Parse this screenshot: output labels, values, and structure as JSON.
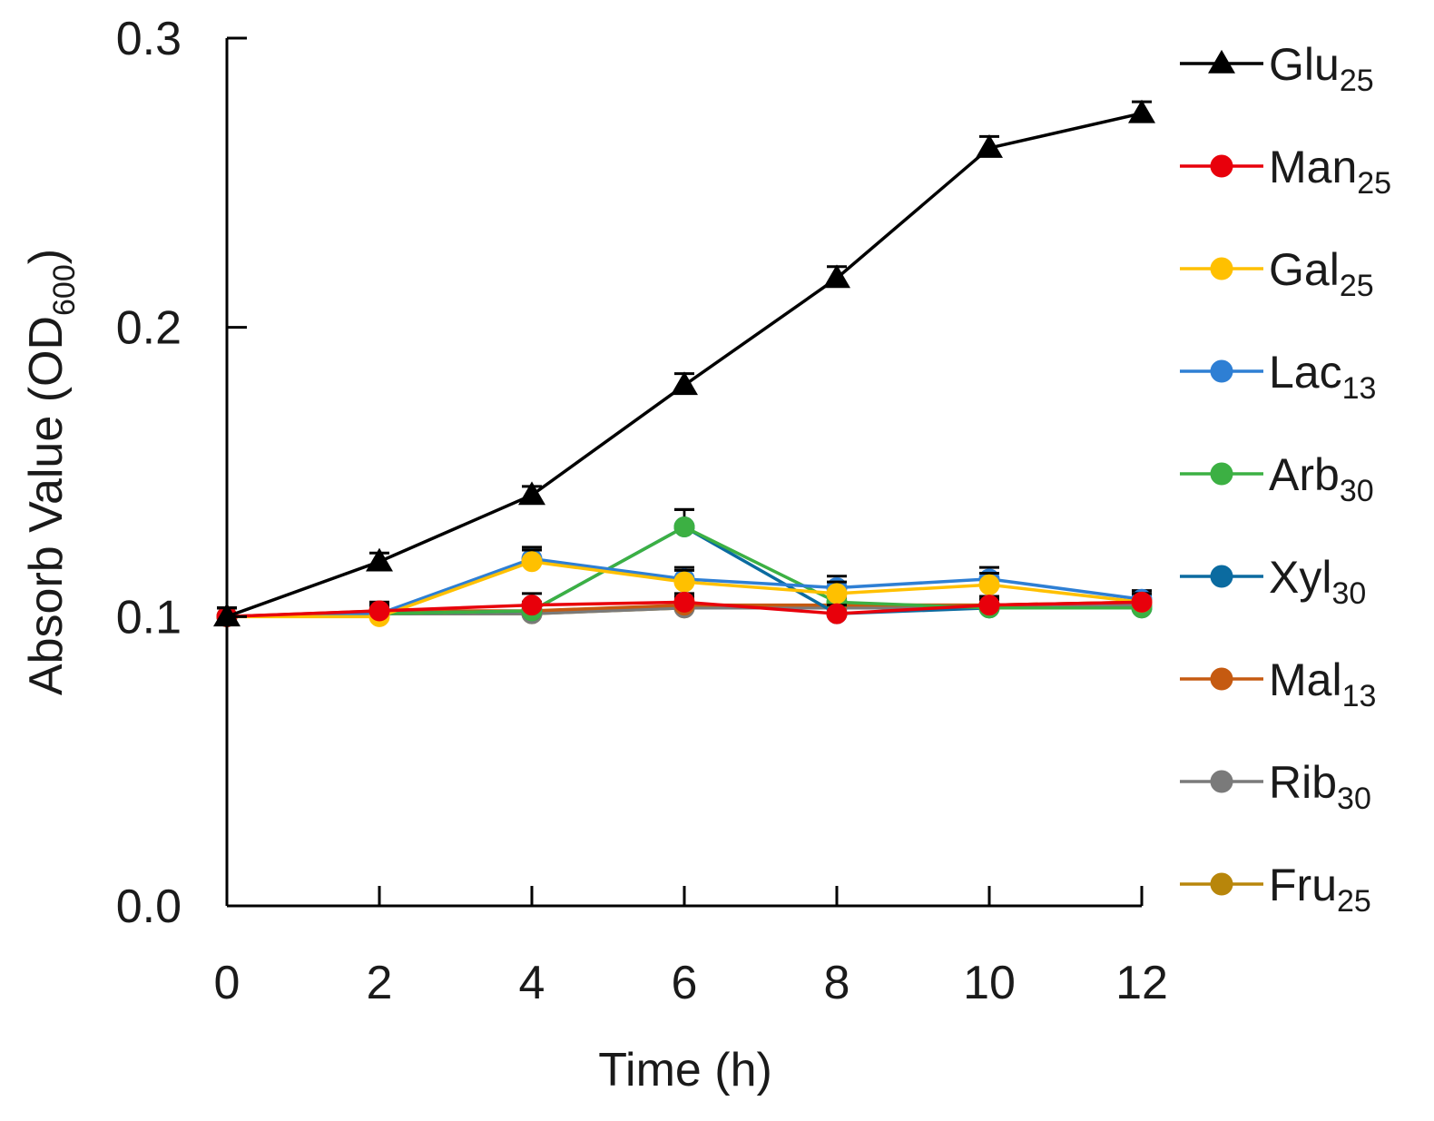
{
  "chart_data": {
    "type": "line",
    "xlabel": "Time (h)",
    "ylabel": {
      "main": "Absorb Value (OD",
      "sub": "600",
      "tail": ")"
    },
    "x": [
      0,
      2,
      4,
      6,
      8,
      10,
      12
    ],
    "xlim": [
      0,
      12
    ],
    "ylim": [
      0.0,
      0.3
    ],
    "x_ticks": [
      "0",
      "2",
      "4",
      "6",
      "8",
      "10",
      "12"
    ],
    "y_ticks": [
      "0.0",
      "0.1",
      "0.2",
      "0.3"
    ],
    "legend_position": "right",
    "grid": false,
    "series": [
      {
        "name": "Glu",
        "sub": "25",
        "color": "#000000",
        "marker": "triangle",
        "values": [
          0.1,
          0.119,
          0.142,
          0.18,
          0.217,
          0.262,
          0.274
        ],
        "errors": [
          0.003,
          0.003,
          0.003,
          0.004,
          0.004,
          0.004,
          0.004
        ]
      },
      {
        "name": "Man",
        "sub": "25",
        "color": "#e8000b",
        "marker": "circle",
        "values": [
          0.1,
          0.102,
          0.104,
          0.105,
          0.101,
          0.104,
          0.105
        ],
        "errors": [
          0.003,
          0.003,
          0.004,
          0.003,
          0.003,
          0.003,
          0.003
        ]
      },
      {
        "name": "Gal",
        "sub": "25",
        "color": "#ffc000",
        "marker": "circle",
        "values": [
          0.1,
          0.1,
          0.119,
          0.112,
          0.108,
          0.111,
          0.105
        ],
        "errors": [
          0.003,
          0.003,
          0.004,
          0.004,
          0.004,
          0.004,
          0.003
        ]
      },
      {
        "name": "Lac",
        "sub": "13",
        "color": "#2e7fd4",
        "marker": "circle",
        "values": [
          0.1,
          0.101,
          0.12,
          0.113,
          0.11,
          0.113,
          0.106
        ],
        "errors": [
          0.003,
          0.003,
          0.004,
          0.004,
          0.004,
          0.004,
          0.003
        ]
      },
      {
        "name": "Arb",
        "sub": "30",
        "color": "#3cb043",
        "marker": "circle",
        "values": [
          0.1,
          0.101,
          0.102,
          0.131,
          0.105,
          0.103,
          0.103
        ],
        "errors": [
          0.003,
          0.003,
          0.003,
          0.006,
          0.003,
          0.003,
          0.003
        ]
      },
      {
        "name": "Xyl",
        "sub": "30",
        "color": "#0b6ba0",
        "marker": "circle",
        "values": [
          0.1,
          0.101,
          0.102,
          0.131,
          0.101,
          0.103,
          0.103
        ],
        "errors": [
          0.003,
          0.003,
          0.003,
          0.006,
          0.003,
          0.003,
          0.003
        ]
      },
      {
        "name": "Mal",
        "sub": "13",
        "color": "#c55a11",
        "marker": "circle",
        "values": [
          0.1,
          0.102,
          0.102,
          0.104,
          0.104,
          0.104,
          0.105
        ],
        "errors": [
          0.003,
          0.003,
          0.003,
          0.003,
          0.003,
          0.003,
          0.003
        ]
      },
      {
        "name": "Rib",
        "sub": "30",
        "color": "#7a7a7a",
        "marker": "circle",
        "values": [
          0.1,
          0.101,
          0.101,
          0.103,
          0.103,
          0.103,
          0.104
        ],
        "errors": [
          0.003,
          0.003,
          0.003,
          0.003,
          0.003,
          0.003,
          0.003
        ]
      },
      {
        "name": "Fru",
        "sub": "25",
        "color": "#b8860b",
        "marker": "circle",
        "values": [
          0.1,
          0.101,
          0.101,
          0.103,
          0.104,
          0.104,
          0.105
        ],
        "errors": [
          0.003,
          0.003,
          0.003,
          0.003,
          0.003,
          0.003,
          0.003
        ]
      }
    ]
  }
}
